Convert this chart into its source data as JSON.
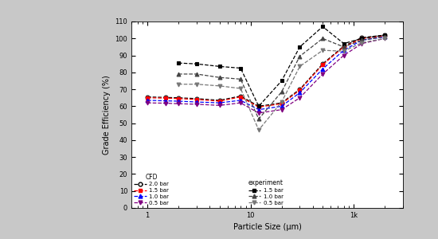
{
  "xlabel": "Particle Size (μm)",
  "ylabel": "Grade Efficiency (%)",
  "xlim": [
    0.7,
    300
  ],
  "ylim": [
    0,
    110
  ],
  "yticks": [
    0,
    10,
    20,
    30,
    40,
    50,
    60,
    70,
    80,
    90,
    100,
    110
  ],
  "background_outer": "#c8c8c8",
  "background_inner": "#ffffff",
  "plot_bg": "#ffffff",
  "cfd_x": [
    1.0,
    1.5,
    2.0,
    3.0,
    5.0,
    8.0,
    12.0,
    20.0,
    30.0,
    50.0,
    80.0,
    120.0,
    200.0
  ],
  "cfd_20_y": [
    65.5,
    65.2,
    65.0,
    64.5,
    63.5,
    66.0,
    60.0,
    62.0,
    70.0,
    85.0,
    95.5,
    100.5,
    102.0
  ],
  "cfd_15_y": [
    65.0,
    64.8,
    64.5,
    64.0,
    63.0,
    65.5,
    59.5,
    61.5,
    69.5,
    84.5,
    95.0,
    100.0,
    101.5
  ],
  "cfd_10_y": [
    63.5,
    63.2,
    63.0,
    62.5,
    62.0,
    63.5,
    58.0,
    60.0,
    68.0,
    82.0,
    93.0,
    99.0,
    101.0
  ],
  "cfd_05_y": [
    62.0,
    61.8,
    61.5,
    61.2,
    60.5,
    62.0,
    56.0,
    58.0,
    65.0,
    79.0,
    90.0,
    97.0,
    100.0
  ],
  "exp_x": [
    2.0,
    3.0,
    5.0,
    8.0,
    12.0,
    20.0,
    30.0,
    50.0,
    80.0,
    120.0,
    200.0
  ],
  "exp_15_y": [
    85.5,
    85.0,
    83.5,
    82.5,
    60.0,
    75.0,
    95.0,
    107.0,
    97.0,
    100.0,
    102.0
  ],
  "exp_10_y": [
    79.0,
    79.0,
    77.0,
    76.0,
    52.5,
    68.5,
    89.5,
    100.0,
    95.0,
    99.0,
    101.0
  ],
  "exp_05_y": [
    73.0,
    73.0,
    72.0,
    70.5,
    46.0,
    62.5,
    83.5,
    93.0,
    92.5,
    97.5,
    100.0
  ],
  "cfd_colors": [
    "black",
    "red",
    "blue",
    "purple"
  ],
  "cfd_markers": [
    "o",
    "s",
    "^",
    "v"
  ],
  "cfd_filled": [
    false,
    true,
    true,
    true
  ],
  "cfd_labels": [
    "2.0 bar",
    "1.5 bar",
    "1.0 bar",
    "0.5 bar"
  ],
  "exp_colors": [
    "black",
    "#444444",
    "#777777"
  ],
  "exp_markers": [
    "s",
    "^",
    "v"
  ],
  "exp_labels": [
    "1.5 bar",
    "1.0 bar",
    "0.5 bar"
  ],
  "legend_cfd_title": "CFD",
  "legend_exp_title": "experiment"
}
